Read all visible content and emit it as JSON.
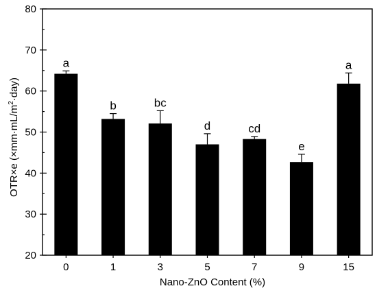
{
  "chart_data": {
    "type": "bar",
    "title": "",
    "xlabel": "Nano-ZnO Content (%)",
    "ylabel_parts": {
      "base": "OTR×e (×mm·mL/m",
      "sup": "2",
      "rest": "·day)"
    },
    "categories": [
      "0",
      "1",
      "3",
      "5",
      "7",
      "9",
      "15"
    ],
    "values": [
      64.2,
      53.2,
      52.1,
      47.0,
      48.3,
      42.7,
      61.8
    ],
    "errors": [
      0.7,
      1.3,
      3.1,
      2.6,
      0.6,
      1.9,
      2.6
    ],
    "significance_labels": [
      "a",
      "b",
      "bc",
      "d",
      "cd",
      "e",
      "a"
    ],
    "ylim": [
      20,
      80
    ],
    "y_ticks": [
      "20",
      "30",
      "40",
      "50",
      "60",
      "70",
      "80"
    ],
    "grid": false,
    "bar_color": "#000000"
  }
}
